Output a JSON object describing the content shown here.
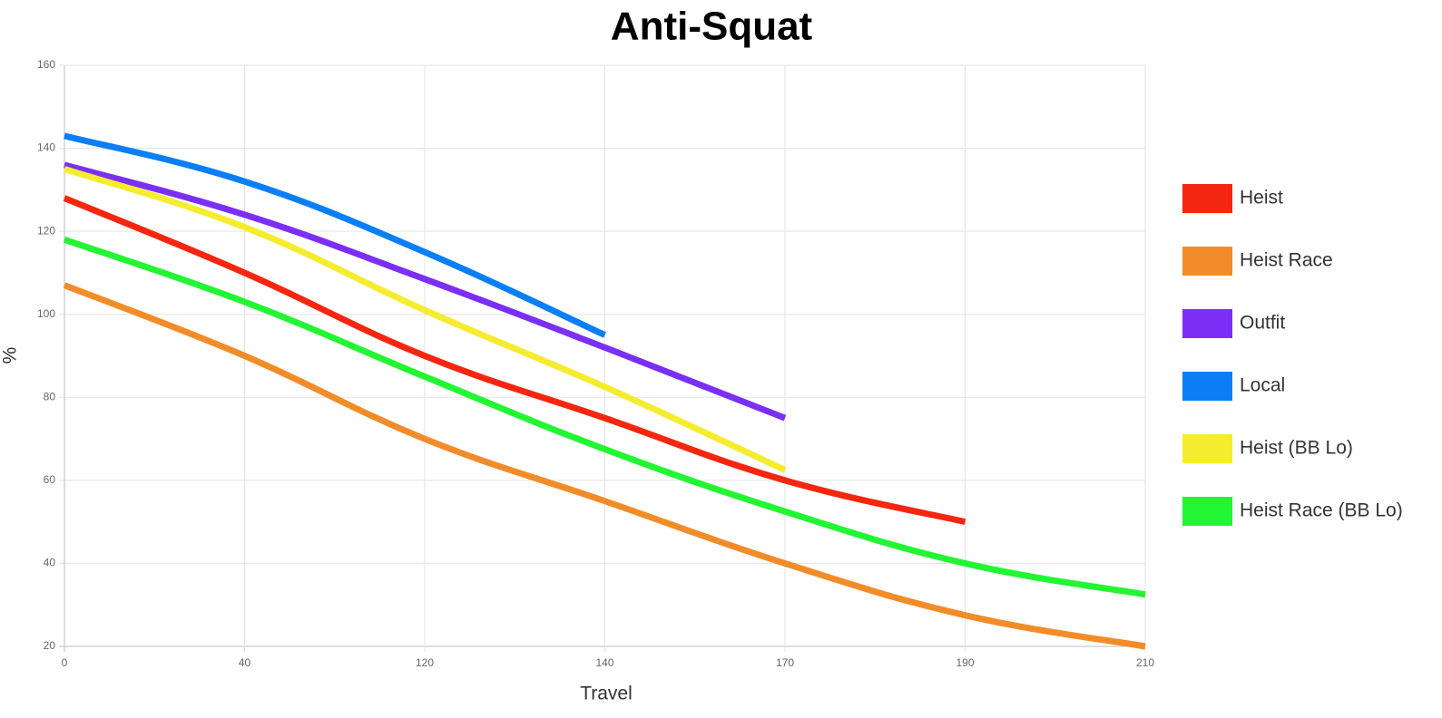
{
  "chart_data": {
    "type": "line",
    "title": "Anti-Squat",
    "x_label": "Travel",
    "y_label": "%",
    "categories": [
      "0",
      "40",
      "120",
      "140",
      "170",
      "190",
      "210"
    ],
    "ylim": [
      20,
      160
    ],
    "yticks": [
      20,
      40,
      60,
      80,
      100,
      120,
      140,
      160
    ],
    "grid": true,
    "legend": "right",
    "series": [
      {
        "name": "Heist",
        "color": "#f5260f",
        "values": [
          128,
          110,
          90,
          75,
          60,
          50,
          null
        ]
      },
      {
        "name": "Heist Race",
        "color": "#f28c28",
        "values": [
          107,
          90,
          70,
          55,
          40,
          27.5,
          20
        ]
      },
      {
        "name": "Outfit",
        "color": "#7b2ff5",
        "values": [
          136,
          124,
          108.5,
          92,
          75,
          null,
          null
        ]
      },
      {
        "name": "Local",
        "color": "#0a7ef5",
        "values": [
          143,
          132,
          115,
          95,
          null,
          null,
          null
        ]
      },
      {
        "name": "Heist (BB Lo)",
        "color": "#f5ec2f",
        "values": [
          135,
          121,
          101,
          82.5,
          62.5,
          null,
          null
        ]
      },
      {
        "name": "Heist Race (BB Lo)",
        "color": "#22f532",
        "values": [
          118,
          103,
          85,
          67.5,
          52.5,
          40,
          32.5
        ]
      }
    ]
  }
}
